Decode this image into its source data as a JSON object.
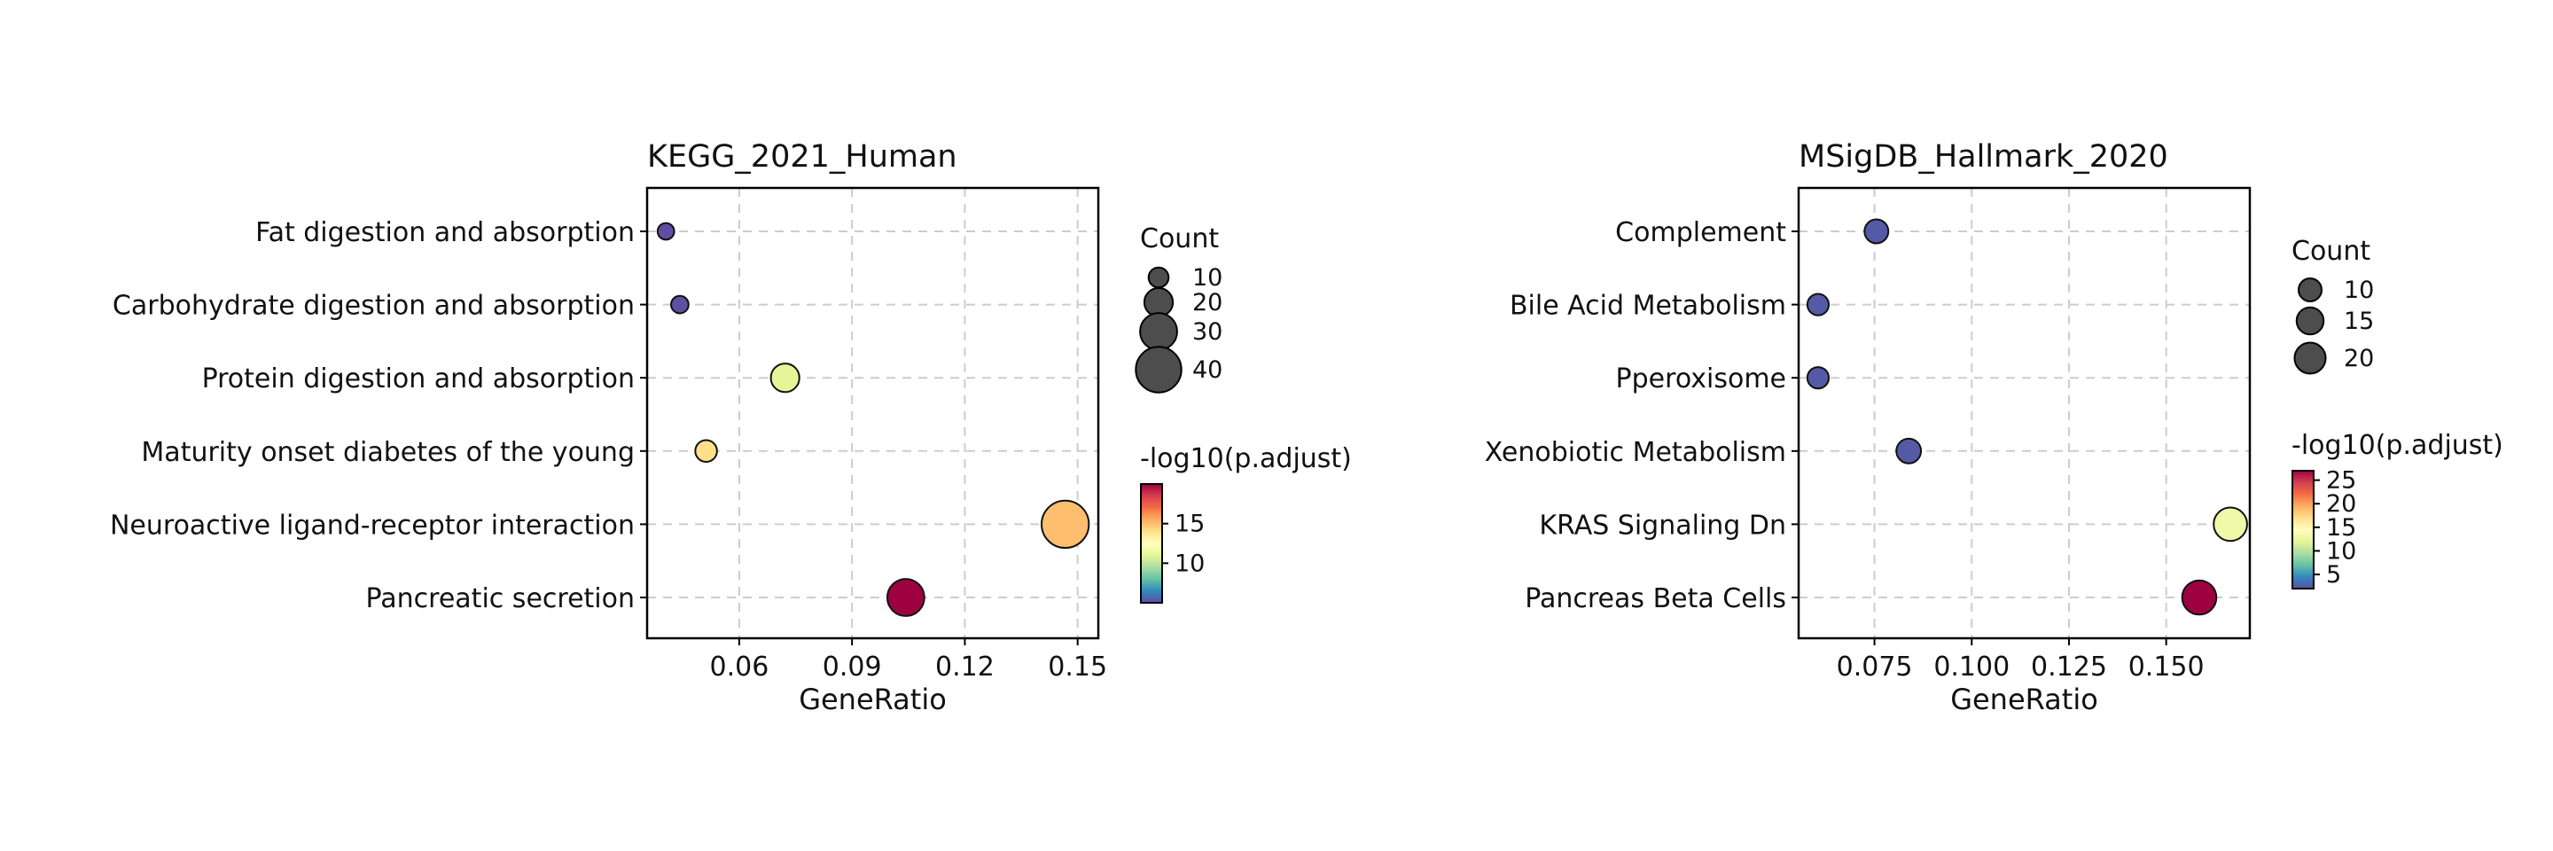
{
  "chart_data": [
    {
      "type": "scatter",
      "title": "KEGG_2021_Human",
      "xlabel": "GeneRatio",
      "ylabel": "",
      "xlim": [
        0.0355,
        0.1555
      ],
      "xticks": [
        0.06,
        0.09,
        0.12,
        0.15
      ],
      "xtick_labels": [
        "0.06",
        "0.09",
        "0.12",
        "0.15"
      ],
      "grid": true,
      "categories": [
        "Fat digestion and absorption",
        "Carbohydrate digestion and absorption",
        "Protein digestion and absorption",
        "Maturity onset diabetes of the young",
        "Neuroactive ligand-receptor interaction",
        "Pancreatic secretion"
      ],
      "x": [
        0.0405,
        0.0442,
        0.0722,
        0.0512,
        0.1467,
        0.1043
      ],
      "count": [
        6,
        7,
        20,
        12,
        42,
        30
      ],
      "neglog10_padj": [
        4,
        4.5,
        11,
        14,
        15,
        20
      ],
      "size_legend": {
        "title": "Count",
        "values": [
          10,
          20,
          30,
          40
        ],
        "labels": [
          "10",
          "20",
          "30",
          "40"
        ]
      },
      "color_legend": {
        "title": "-log10(p.adjust)",
        "min": 5,
        "max": 20,
        "ticks": [
          10,
          15
        ],
        "tick_labels": [
          "10",
          "15"
        ]
      }
    },
    {
      "type": "scatter",
      "title": "MSigDB_Hallmark_2020",
      "xlabel": "GeneRatio",
      "ylabel": "",
      "xlim": [
        0.0555,
        0.1715
      ],
      "xticks": [
        0.075,
        0.1,
        0.125,
        0.15
      ],
      "xtick_labels": [
        "0.075",
        "0.100",
        "0.125",
        "0.150"
      ],
      "grid": true,
      "categories": [
        "Complement",
        "Bile Acid Metabolism",
        "Pperoxisome",
        "Xenobiotic Metabolism",
        "KRAS Signaling Dn",
        "Pancreas Beta Cells"
      ],
      "x": [
        0.0755,
        0.0605,
        0.0605,
        0.0838,
        0.1665,
        0.1585
      ],
      "count": [
        11,
        8,
        8,
        12,
        23,
        24
      ],
      "neglog10_padj": [
        2.5,
        2.5,
        2.5,
        2.5,
        13,
        27
      ],
      "size_legend": {
        "title": "Count",
        "values": [
          10,
          15,
          20
        ],
        "labels": [
          "10",
          "15",
          "20"
        ]
      },
      "color_legend": {
        "title": "-log10(p.adjust)",
        "min": 2,
        "max": 27,
        "ticks": [
          5,
          10,
          15,
          20,
          25
        ],
        "tick_labels": [
          "5",
          "10",
          "15",
          "20",
          "25"
        ]
      }
    }
  ],
  "colors": {
    "palette": [
      "#5e4fa2",
      "#3288bd",
      "#66c2a5",
      "#abdda4",
      "#e6f598",
      "#ffffbf",
      "#fee08b",
      "#fdae61",
      "#f46d43",
      "#d53e4f",
      "#9e0142"
    ],
    "marker_edge": "#111111",
    "grid": "#cccccc",
    "legend_marker": "#4d4d4d"
  }
}
